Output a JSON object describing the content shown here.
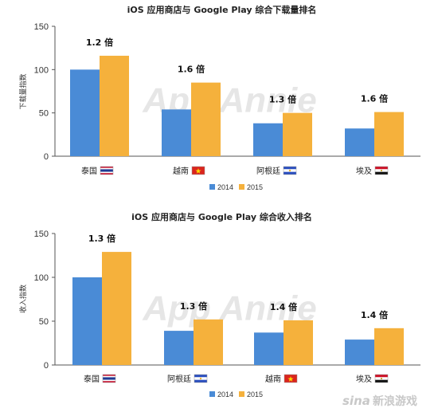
{
  "colors": {
    "series_2014": "#4a8bd6",
    "series_2015": "#f5b13c",
    "axis": "#555555",
    "grid": "#d9d9d9"
  },
  "watermarks": {
    "chart": "App Annie",
    "corner_logo": "sina",
    "corner_text": "新浪游戏"
  },
  "chart_data": [
    {
      "type": "bar",
      "title": "iOS 应用商店与 Google Play 综合下载量排名",
      "ylabel": "下载量指数",
      "xlabel": "",
      "ylim": [
        0,
        150
      ],
      "yticks": [
        0,
        50,
        100,
        150
      ],
      "grid": false,
      "legend_position": "bottom",
      "categories": [
        "泰国",
        "越南",
        "阿根廷",
        "埃及"
      ],
      "flags": [
        "thailand-flag",
        "vietnam-flag",
        "argentina-flag",
        "egypt-flag"
      ],
      "series": [
        {
          "name": "2014",
          "values": [
            100,
            54,
            38,
            32
          ]
        },
        {
          "name": "2015",
          "values": [
            116,
            85,
            50,
            51
          ]
        }
      ],
      "annotations": [
        "1.2 倍",
        "1.6 倍",
        "1.3 倍",
        "1.6 倍"
      ]
    },
    {
      "type": "bar",
      "title": "iOS 应用商店与 Google Play 综合收入排名",
      "ylabel": "收入指数",
      "xlabel": "",
      "ylim": [
        0,
        150
      ],
      "yticks": [
        0,
        50,
        100,
        150
      ],
      "grid": false,
      "legend_position": "bottom",
      "categories": [
        "泰国",
        "阿根廷",
        "越南",
        "埃及"
      ],
      "flags": [
        "thailand-flag",
        "argentina-flag",
        "vietnam-flag",
        "egypt-flag"
      ],
      "series": [
        {
          "name": "2014",
          "values": [
            100,
            39,
            37,
            29
          ]
        },
        {
          "name": "2015",
          "values": [
            129,
            52,
            51,
            42
          ]
        }
      ],
      "annotations": [
        "1.3 倍",
        "1.3 倍",
        "1.4 倍",
        "1.4 倍"
      ]
    }
  ]
}
